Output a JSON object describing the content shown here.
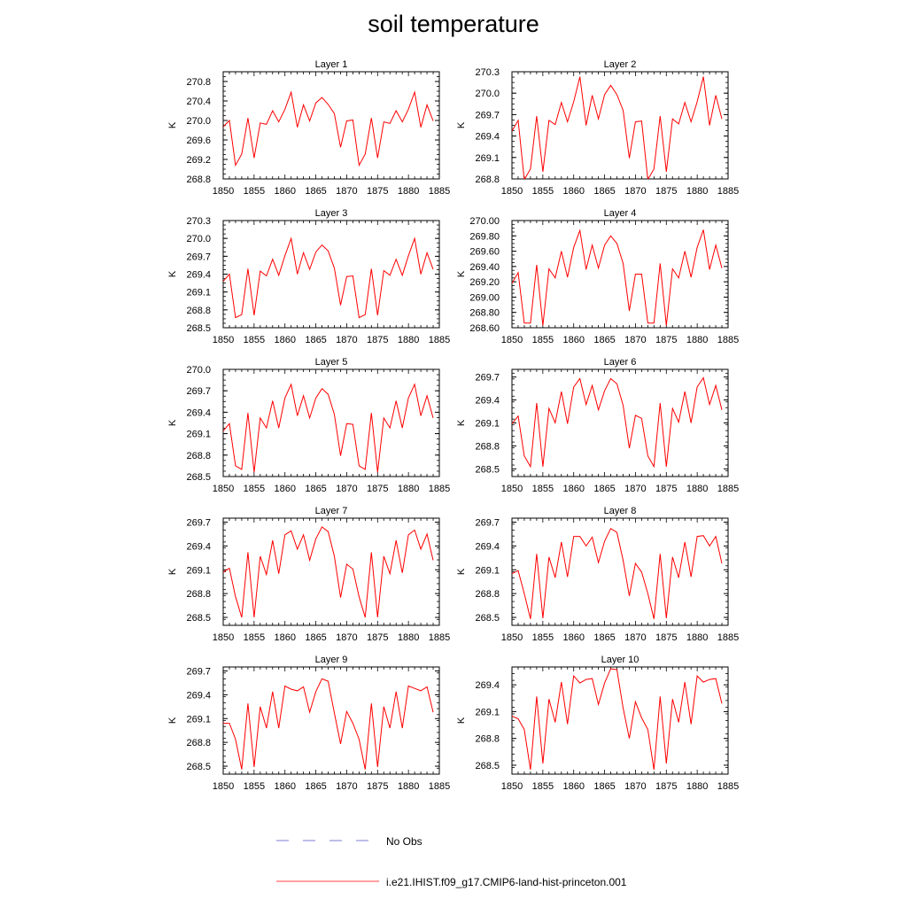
{
  "title": "soil temperature",
  "legend": [
    {
      "label": "No Obs",
      "color": "#7b7bd6",
      "style": "dashed"
    },
    {
      "label": "i.e21.IHIST.f09_g17.CMIP6-land-hist-princeton.001",
      "color": "#ff0000",
      "style": "solid"
    }
  ],
  "colors": {
    "series": "#ff0000",
    "axis": "#000000",
    "background": "#ffffff"
  },
  "chart_data": [
    {
      "type": "line",
      "title": "Layer 1",
      "ylabel": "K",
      "xlim": [
        1850,
        1885
      ],
      "ylim": [
        268.8,
        271.0
      ],
      "xticks": [
        1850,
        1855,
        1860,
        1865,
        1870,
        1875,
        1880,
        1885
      ],
      "yticks": [
        "268.8",
        "269.2",
        "269.6",
        "270.0",
        "270.4",
        "270.8"
      ],
      "x": [
        1850,
        1851,
        1852,
        1853,
        1854,
        1855,
        1856,
        1857,
        1858,
        1859,
        1860,
        1861,
        1862,
        1863,
        1864,
        1865,
        1866,
        1867,
        1868,
        1869,
        1870,
        1871,
        1872,
        1873,
        1874,
        1875,
        1876,
        1877,
        1878,
        1879,
        1880,
        1881,
        1882,
        1883,
        1884
      ],
      "series": [
        {
          "values": [
            269.87,
            270.0,
            269.08,
            269.31,
            270.05,
            269.23,
            269.95,
            269.92,
            270.2,
            269.97,
            270.23,
            270.58,
            269.86,
            270.32,
            269.99,
            270.36,
            270.47,
            270.33,
            270.14,
            269.45,
            269.99,
            270.01,
            269.08,
            269.31,
            270.05,
            269.23,
            269.97,
            269.94,
            270.2,
            269.97,
            270.23,
            270.58,
            269.86,
            270.32,
            269.99
          ]
        }
      ]
    },
    {
      "type": "line",
      "title": "Layer 2",
      "ylabel": "K",
      "xlim": [
        1850,
        1885
      ],
      "ylim": [
        268.8,
        270.3
      ],
      "xticks": [
        1850,
        1855,
        1860,
        1865,
        1870,
        1875,
        1880,
        1885
      ],
      "yticks": [
        "268.8",
        "269.1",
        "269.4",
        "269.7",
        "270.0",
        "270.3"
      ],
      "x": [
        1850,
        1851,
        1852,
        1853,
        1854,
        1855,
        1856,
        1857,
        1858,
        1859,
        1860,
        1861,
        1862,
        1863,
        1864,
        1865,
        1866,
        1867,
        1868,
        1869,
        1870,
        1871,
        1872,
        1873,
        1874,
        1875,
        1876,
        1877,
        1878,
        1879,
        1880,
        1881,
        1882,
        1883,
        1884
      ],
      "series": [
        {
          "values": [
            269.47,
            269.62,
            268.79,
            268.94,
            269.68,
            268.9,
            269.62,
            269.56,
            269.87,
            269.6,
            269.88,
            270.23,
            269.55,
            269.97,
            269.64,
            269.98,
            270.11,
            269.98,
            269.76,
            269.09,
            269.6,
            269.61,
            268.79,
            268.94,
            269.68,
            268.9,
            269.64,
            269.57,
            269.87,
            269.6,
            269.88,
            270.23,
            269.55,
            269.97,
            269.64
          ]
        }
      ]
    },
    {
      "type": "line",
      "title": "Layer 3",
      "ylabel": "K",
      "xlim": [
        1850,
        1885
      ],
      "ylim": [
        268.5,
        270.3
      ],
      "xticks": [
        1850,
        1855,
        1860,
        1865,
        1870,
        1875,
        1880,
        1885
      ],
      "yticks": [
        "268.5",
        "268.8",
        "269.1",
        "269.4",
        "269.7",
        "270.0",
        "270.3"
      ],
      "x": [
        1850,
        1851,
        1852,
        1853,
        1854,
        1855,
        1856,
        1857,
        1858,
        1859,
        1860,
        1861,
        1862,
        1863,
        1864,
        1865,
        1866,
        1867,
        1868,
        1869,
        1870,
        1871,
        1872,
        1873,
        1874,
        1875,
        1876,
        1877,
        1878,
        1879,
        1880,
        1881,
        1882,
        1883,
        1884
      ],
      "series": [
        {
          "values": [
            269.28,
            269.4,
            268.67,
            268.72,
            269.49,
            268.71,
            269.45,
            269.37,
            269.65,
            269.38,
            269.71,
            270.0,
            269.4,
            269.76,
            269.48,
            269.77,
            269.89,
            269.79,
            269.5,
            268.88,
            269.36,
            269.37,
            268.67,
            268.72,
            269.49,
            268.71,
            269.46,
            269.38,
            269.65,
            269.38,
            269.71,
            270.0,
            269.4,
            269.76,
            269.48
          ]
        }
      ]
    },
    {
      "type": "line",
      "title": "Layer 4",
      "ylabel": "K",
      "xlim": [
        1850,
        1885
      ],
      "ylim": [
        268.6,
        270.0
      ],
      "xticks": [
        1850,
        1855,
        1860,
        1865,
        1870,
        1875,
        1880,
        1885
      ],
      "yticks": [
        "268.60",
        "268.80",
        "269.00",
        "269.20",
        "269.40",
        "269.60",
        "269.80",
        "270.00"
      ],
      "x": [
        1850,
        1851,
        1852,
        1853,
        1854,
        1855,
        1856,
        1857,
        1858,
        1859,
        1860,
        1861,
        1862,
        1863,
        1864,
        1865,
        1866,
        1867,
        1868,
        1869,
        1870,
        1871,
        1872,
        1873,
        1874,
        1875,
        1876,
        1877,
        1878,
        1879,
        1880,
        1881,
        1882,
        1883,
        1884
      ],
      "series": [
        {
          "values": [
            269.18,
            269.32,
            268.66,
            268.66,
            269.42,
            268.63,
            269.37,
            269.25,
            269.6,
            269.26,
            269.65,
            269.87,
            269.36,
            269.68,
            269.38,
            269.68,
            269.8,
            269.7,
            269.44,
            268.82,
            269.3,
            269.3,
            268.66,
            268.66,
            269.44,
            268.63,
            269.37,
            269.25,
            269.6,
            269.26,
            269.65,
            269.88,
            269.36,
            269.68,
            269.38
          ]
        }
      ]
    },
    {
      "type": "line",
      "title": "Layer 5",
      "ylabel": "K",
      "xlim": [
        1850,
        1885
      ],
      "ylim": [
        268.5,
        270.0
      ],
      "xticks": [
        1850,
        1855,
        1860,
        1865,
        1870,
        1875,
        1880,
        1885
      ],
      "yticks": [
        "268.5",
        "268.8",
        "269.1",
        "269.4",
        "269.7",
        "270.0"
      ],
      "x": [
        1850,
        1851,
        1852,
        1853,
        1854,
        1855,
        1856,
        1857,
        1858,
        1859,
        1860,
        1861,
        1862,
        1863,
        1864,
        1865,
        1866,
        1867,
        1868,
        1869,
        1870,
        1871,
        1872,
        1873,
        1874,
        1875,
        1876,
        1877,
        1878,
        1879,
        1880,
        1881,
        1882,
        1883,
        1884
      ],
      "series": [
        {
          "values": [
            269.14,
            269.24,
            268.65,
            268.6,
            269.39,
            268.56,
            269.32,
            269.18,
            269.56,
            269.18,
            269.6,
            269.79,
            269.35,
            269.63,
            269.32,
            269.6,
            269.73,
            269.65,
            269.37,
            268.79,
            269.24,
            269.23,
            268.65,
            268.6,
            269.39,
            268.56,
            269.32,
            269.18,
            269.56,
            269.18,
            269.6,
            269.79,
            269.35,
            269.63,
            269.32
          ]
        }
      ]
    },
    {
      "type": "line",
      "title": "Layer 6",
      "ylabel": "K",
      "xlim": [
        1850,
        1885
      ],
      "ylim": [
        268.4,
        269.8
      ],
      "xticks": [
        1850,
        1855,
        1860,
        1865,
        1870,
        1875,
        1880,
        1885
      ],
      "yticks": [
        "268.5",
        "268.8",
        "269.1",
        "269.4",
        "269.7"
      ],
      "x": [
        1850,
        1851,
        1852,
        1853,
        1854,
        1855,
        1856,
        1857,
        1858,
        1859,
        1860,
        1861,
        1862,
        1863,
        1864,
        1865,
        1866,
        1867,
        1868,
        1869,
        1870,
        1871,
        1872,
        1873,
        1874,
        1875,
        1876,
        1877,
        1878,
        1879,
        1880,
        1881,
        1882,
        1883,
        1884
      ],
      "series": [
        {
          "values": [
            269.09,
            269.19,
            268.67,
            268.53,
            269.36,
            268.53,
            269.29,
            269.1,
            269.51,
            269.09,
            269.57,
            269.68,
            269.34,
            269.59,
            269.27,
            269.52,
            269.68,
            269.61,
            269.33,
            268.77,
            269.2,
            269.16,
            268.67,
            268.53,
            269.36,
            268.53,
            269.29,
            269.11,
            269.51,
            269.1,
            269.57,
            269.69,
            269.34,
            269.59,
            269.27
          ]
        }
      ]
    },
    {
      "type": "line",
      "title": "Layer 7",
      "ylabel": "K",
      "xlim": [
        1850,
        1885
      ],
      "ylim": [
        268.4,
        269.75
      ],
      "xticks": [
        1850,
        1855,
        1860,
        1865,
        1870,
        1875,
        1880,
        1885
      ],
      "yticks": [
        "268.5",
        "268.8",
        "269.1",
        "269.4",
        "269.7"
      ],
      "x": [
        1850,
        1851,
        1852,
        1853,
        1854,
        1855,
        1856,
        1857,
        1858,
        1859,
        1860,
        1861,
        1862,
        1863,
        1864,
        1865,
        1866,
        1867,
        1868,
        1869,
        1870,
        1871,
        1872,
        1873,
        1874,
        1875,
        1876,
        1877,
        1878,
        1879,
        1880,
        1881,
        1882,
        1883,
        1884
      ],
      "series": [
        {
          "values": [
            269.07,
            269.12,
            268.76,
            268.5,
            269.32,
            268.5,
            269.27,
            269.04,
            269.47,
            269.05,
            269.54,
            269.59,
            269.36,
            269.54,
            269.22,
            269.49,
            269.64,
            269.58,
            269.27,
            268.75,
            269.17,
            269.11,
            268.76,
            268.5,
            269.32,
            268.5,
            269.27,
            269.05,
            269.47,
            269.06,
            269.54,
            269.6,
            269.36,
            269.55,
            269.22
          ]
        }
      ]
    },
    {
      "type": "line",
      "title": "Layer 8",
      "ylabel": "K",
      "xlim": [
        1850,
        1885
      ],
      "ylim": [
        268.4,
        269.75
      ],
      "xticks": [
        1850,
        1855,
        1860,
        1865,
        1870,
        1875,
        1880,
        1885
      ],
      "yticks": [
        "268.5",
        "268.8",
        "269.1",
        "269.4",
        "269.7"
      ],
      "x": [
        1850,
        1851,
        1852,
        1853,
        1854,
        1855,
        1856,
        1857,
        1858,
        1859,
        1860,
        1861,
        1862,
        1863,
        1864,
        1865,
        1866,
        1867,
        1868,
        1869,
        1870,
        1871,
        1872,
        1873,
        1874,
        1875,
        1876,
        1877,
        1878,
        1879,
        1880,
        1881,
        1882,
        1883,
        1884
      ],
      "series": [
        {
          "values": [
            269.05,
            269.09,
            268.8,
            268.48,
            269.3,
            268.49,
            269.26,
            269.0,
            269.45,
            269.01,
            269.52,
            269.52,
            269.4,
            269.51,
            269.19,
            269.46,
            269.62,
            269.57,
            269.22,
            268.77,
            269.18,
            269.07,
            268.8,
            268.48,
            269.3,
            268.49,
            269.26,
            269.0,
            269.45,
            269.01,
            269.52,
            269.53,
            269.4,
            269.52,
            269.18
          ]
        }
      ]
    },
    {
      "type": "line",
      "title": "Layer 9",
      "ylabel": "K",
      "xlim": [
        1850,
        1885
      ],
      "ylim": [
        268.4,
        269.75
      ],
      "xticks": [
        1850,
        1855,
        1860,
        1865,
        1870,
        1875,
        1880,
        1885
      ],
      "yticks": [
        "268.5",
        "268.8",
        "269.1",
        "269.4",
        "269.7"
      ],
      "x": [
        1850,
        1851,
        1852,
        1853,
        1854,
        1855,
        1856,
        1857,
        1858,
        1859,
        1860,
        1861,
        1862,
        1863,
        1864,
        1865,
        1866,
        1867,
        1868,
        1869,
        1870,
        1871,
        1872,
        1873,
        1874,
        1875,
        1876,
        1877,
        1878,
        1879,
        1880,
        1881,
        1882,
        1883,
        1884
      ],
      "series": [
        {
          "values": [
            269.04,
            269.04,
            268.84,
            268.46,
            269.29,
            268.49,
            269.25,
            268.98,
            269.44,
            268.98,
            269.51,
            269.47,
            269.45,
            269.5,
            269.18,
            269.44,
            269.6,
            269.57,
            269.17,
            268.78,
            269.19,
            269.04,
            268.84,
            268.46,
            269.29,
            268.49,
            269.25,
            268.98,
            269.44,
            268.98,
            269.51,
            269.48,
            269.45,
            269.5,
            269.18
          ]
        }
      ]
    },
    {
      "type": "line",
      "title": "Layer 10",
      "ylabel": "K",
      "xlim": [
        1850,
        1885
      ],
      "ylim": [
        268.4,
        269.6
      ],
      "xticks": [
        1850,
        1855,
        1860,
        1865,
        1870,
        1875,
        1880,
        1885
      ],
      "yticks": [
        "268.5",
        "268.8",
        "269.1",
        "269.4"
      ],
      "x": [
        1850,
        1851,
        1852,
        1853,
        1854,
        1855,
        1856,
        1857,
        1858,
        1859,
        1860,
        1861,
        1862,
        1863,
        1864,
        1865,
        1866,
        1867,
        1868,
        1869,
        1870,
        1871,
        1872,
        1873,
        1874,
        1875,
        1876,
        1877,
        1878,
        1879,
        1880,
        1881,
        1882,
        1883,
        1884
      ],
      "series": [
        {
          "values": [
            269.05,
            269.02,
            268.9,
            268.45,
            269.27,
            268.52,
            269.24,
            268.98,
            269.43,
            268.96,
            269.5,
            269.42,
            269.46,
            269.47,
            269.18,
            269.42,
            269.58,
            269.57,
            269.14,
            268.8,
            269.21,
            269.03,
            268.9,
            268.45,
            269.27,
            268.52,
            269.24,
            268.98,
            269.43,
            268.96,
            269.5,
            269.43,
            269.46,
            269.47,
            269.19
          ]
        }
      ]
    }
  ]
}
